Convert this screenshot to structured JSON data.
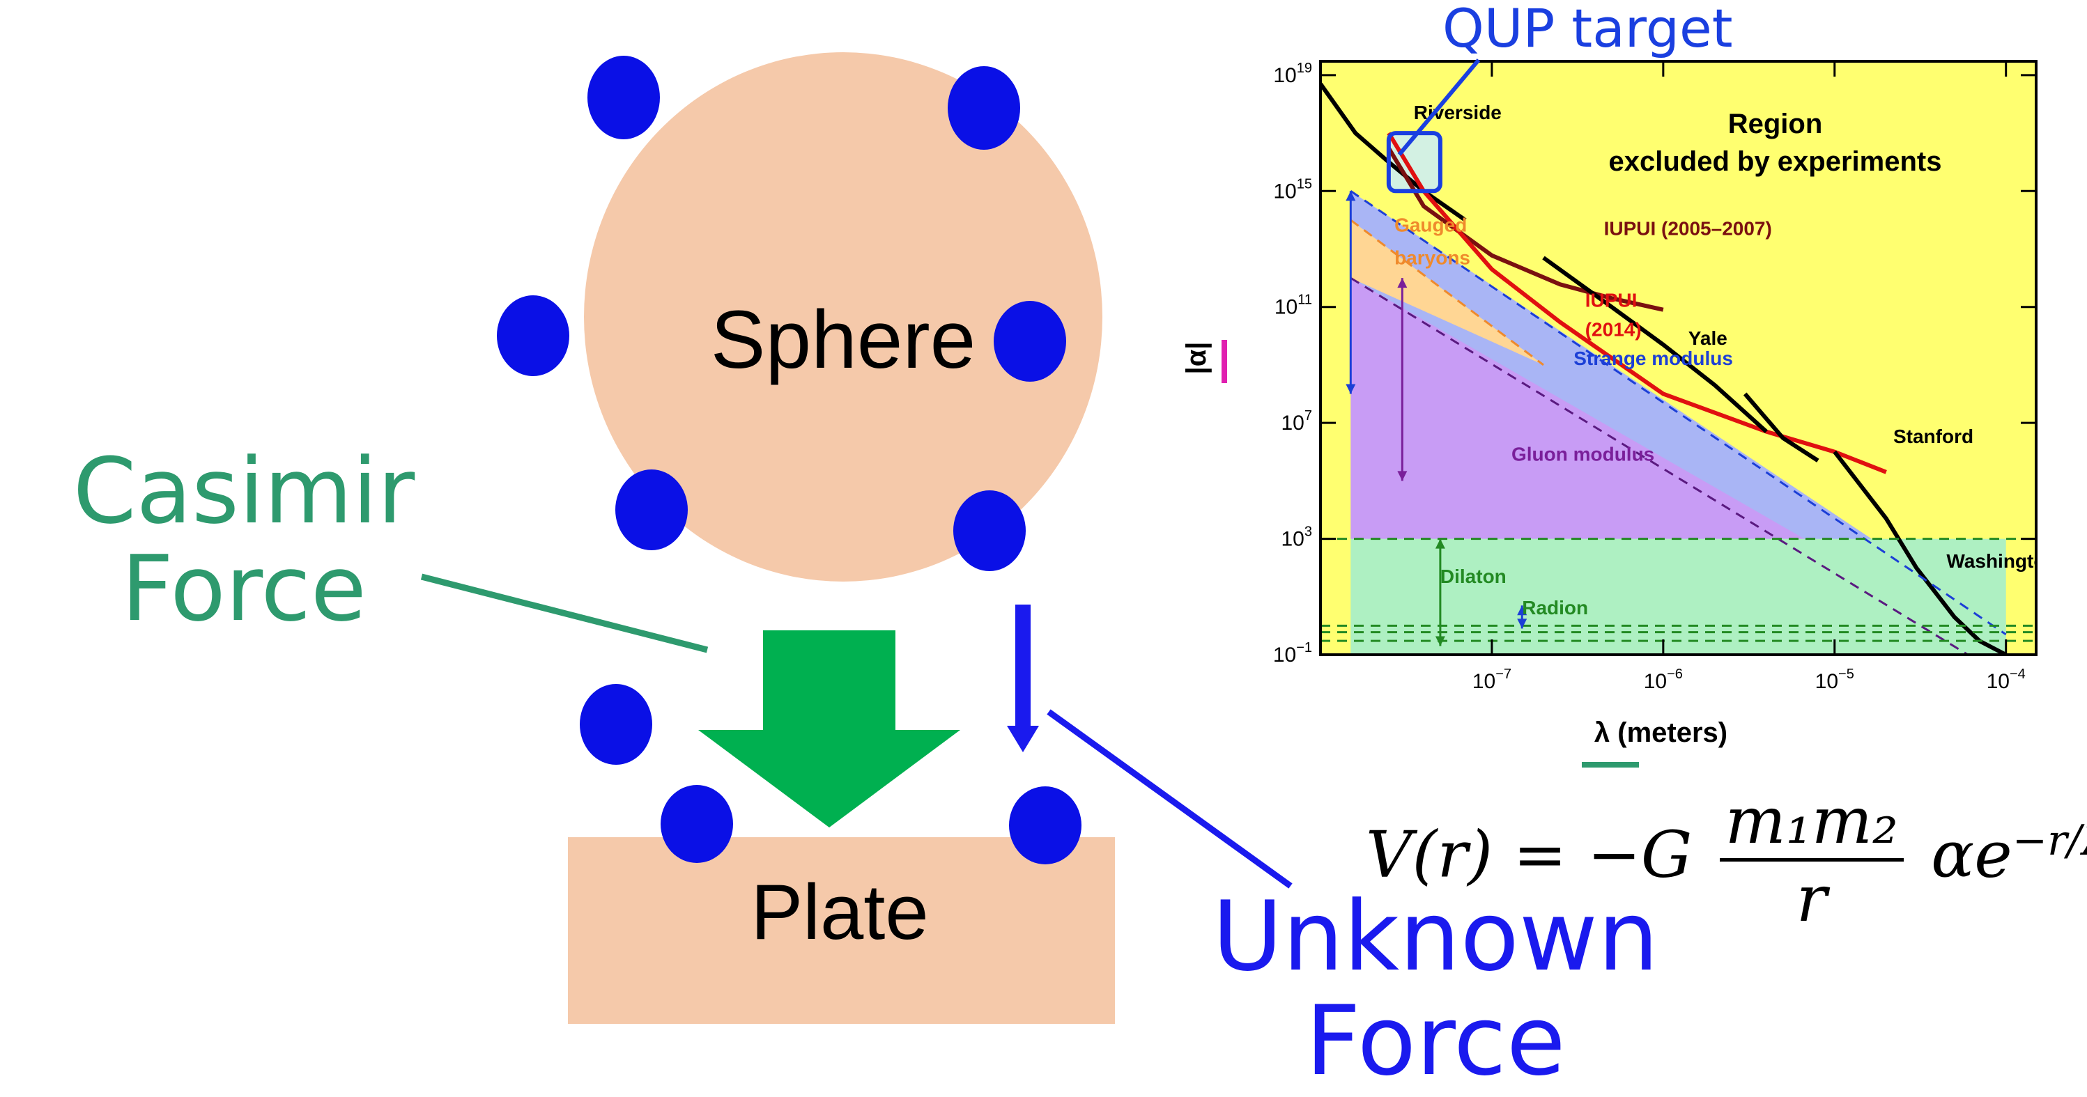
{
  "diagram": {
    "sphere_label": "Sphere",
    "plate_label": "Plate",
    "casimir_label_line1": "Casimir",
    "casimir_label_line2": "Force",
    "unknown_label_line1": "Unknown",
    "unknown_label_line2": "Force",
    "qup_label": "QUP target",
    "formula": {
      "lhs": "V(r) = −G",
      "numerator": "m₁m₂",
      "denominator": "r",
      "factor": "αe",
      "exponent": "−r/λ"
    },
    "colors": {
      "sphere_fill": "#f5c9aa",
      "plate_fill": "#f5c9aa",
      "particle": "#0a10e6",
      "casimir_arrow": "#00b050",
      "casimir_text": "#2e9a6e",
      "unknown_force": "#1a1aee"
    }
  },
  "chart_data": {
    "type": "area",
    "ylabel": "|α|",
    "xlabel": "λ (meters)",
    "x_scale": "log",
    "y_scale": "log",
    "xlim": [
      1e-08,
      0.00015
    ],
    "ylim": [
      0.1,
      3e+19
    ],
    "x_ticks": [
      {
        "value": 1e-07,
        "base": "10",
        "exp": "−7"
      },
      {
        "value": 1e-06,
        "base": "10",
        "exp": "−6"
      },
      {
        "value": 1e-05,
        "base": "10",
        "exp": "−5"
      },
      {
        "value": 0.0001,
        "base": "10",
        "exp": "−4"
      }
    ],
    "y_ticks": [
      {
        "value": 0.1,
        "base": "10",
        "exp": "−1"
      },
      {
        "value": 1000.0,
        "base": "10",
        "exp": "3"
      },
      {
        "value": 10000000.0,
        "base": "10",
        "exp": "7"
      },
      {
        "value": 100000000000.0,
        "base": "10",
        "exp": "11"
      },
      {
        "value": 1000000000000000.0,
        "base": "10",
        "exp": "15"
      },
      {
        "value": 1e+19,
        "base": "10",
        "exp": "19"
      }
    ],
    "background_color": "#ffff70",
    "annotations": [
      {
        "text": "Region",
        "x": 4.5e-06,
        "y": 1e+17,
        "color": "#000000"
      },
      {
        "text": "excluded by experiments",
        "x": 4.5e-06,
        "y": 5000000000000000.0,
        "color": "#000000"
      },
      {
        "text": "Riverside",
        "x": 3.5e-08,
        "y": 3e+17,
        "color": "#000000"
      },
      {
        "text": "IUPUI (2005–2007)",
        "x": 4.5e-07,
        "y": 30000000000000.0,
        "color": "#7a1010"
      },
      {
        "text": "IUPUI",
        "x": 3.5e-07,
        "y": 100000000000.0,
        "color": "#e01010"
      },
      {
        "text": "(2014)",
        "x": 3.5e-07,
        "y": 10000000000.0,
        "color": "#e01010"
      },
      {
        "text": "Yale",
        "x": 1.4e-06,
        "y": 5000000000.0,
        "color": "#000000"
      },
      {
        "text": "Stanford",
        "x": 2.2e-05,
        "y": 2000000.0,
        "color": "#000000"
      },
      {
        "text": "Washington",
        "x": 4.5e-05,
        "y": 100.0,
        "color": "#000000"
      },
      {
        "text": "Gauged",
        "x": 2.7e-08,
        "y": 40000000000000.0,
        "color": "#ef8a2c"
      },
      {
        "text": "baryons",
        "x": 2.7e-08,
        "y": 3000000000000.0,
        "color": "#ef8a2c"
      },
      {
        "text": "Strange modulus",
        "x": 3e-07,
        "y": 1000000000.0,
        "color": "#1c3fd6"
      },
      {
        "text": "Gluon modulus",
        "x": 1.3e-07,
        "y": 500000.0,
        "color": "#7a1f9a"
      },
      {
        "text": "Dilaton",
        "x": 5e-08,
        "y": 30,
        "color": "#238a23"
      },
      {
        "text": "Radion",
        "x": 1.5e-07,
        "y": 2.5,
        "color": "#238a23"
      }
    ],
    "regions": [
      {
        "name": "",
        "color": "#a9b5f5",
        "upper": [
          [
            1.5e-08,
            1000000000000000.0
          ],
          [
            0.0001,
            0.8
          ]
        ],
        "lower": [
          [
            1.5e-08,
            10000000000.0
          ],
          [
            0.0001,
            0.1
          ]
        ]
      },
      {
        "name": "",
        "color": "#c89cf5",
        "upper": [
          [
            1.5e-08,
            1000000000000.0
          ],
          [
            0.0001,
            0.1
          ]
        ],
        "lower": [
          [
            1.5e-08,
            1000.0
          ],
          [
            0.0001,
            0.1
          ]
        ]
      },
      {
        "name": "",
        "color": "#aef0c2",
        "upper": [
          [
            1.5e-08,
            1000.0
          ],
          [
            0.0001,
            1000.0
          ]
        ],
        "lower": [
          [
            1.5e-08,
            0.1
          ],
          [
            0.0001,
            0.1
          ]
        ]
      },
      {
        "name": "",
        "color": "#ffd694",
        "upper": [
          [
            1.5e-08,
            100000000000000.0
          ],
          [
            2e-07,
            1000000000.0
          ]
        ],
        "lower": [
          [
            1.5e-08,
            1000000000000.0
          ],
          [
            2e-07,
            1000000000.0
          ]
        ]
      }
    ],
    "series": [
      {
        "name": "Riverside",
        "color": "#000000",
        "x": [
          1e-08,
          1.6e-08,
          2.5e-08,
          4e-08,
          7e-08
        ],
        "y": [
          5e+18,
          1e+17,
          1e+16,
          1000000000000000.0,
          100000000000000.0
        ]
      },
      {
        "name": "IUPUI (2005–2007)",
        "color": "#7a1010",
        "x": [
          2.5e-08,
          4e-08,
          1e-07,
          2.5e-07,
          5e-07,
          1e-06
        ],
        "y": [
          3e+16,
          300000000000000.0,
          6000000000000.0,
          600000000000.0,
          200000000000.0,
          80000000000.0
        ]
      },
      {
        "name": "IUPUI (2014)",
        "color": "#e01010",
        "x": [
          2.5e-08,
          4e-08,
          1e-07,
          2.5e-07,
          1e-06,
          4e-06,
          1e-05,
          2e-05
        ],
        "y": [
          1e+17,
          1000000000000000.0,
          2000000000000.0,
          30000000000.0,
          100000000.0,
          5000000.0,
          1000000.0,
          200000.0
        ]
      },
      {
        "name": "Yale",
        "color": "#000000",
        "x": [
          2e-07,
          5e-07,
          1e-06,
          2e-06,
          4e-06
        ],
        "y": [
          5000000000000.0,
          100000000000.0,
          5000000000.0,
          200000000.0,
          5000000.0
        ]
      },
      {
        "name": "Stanford",
        "color": "#000000",
        "x": [
          3e-06,
          5e-06,
          8e-06
        ],
        "y": [
          100000000.0,
          3000000.0,
          500000.0
        ]
      },
      {
        "name": "Washington",
        "color": "#000000",
        "x": [
          1e-05,
          2e-05,
          3e-05,
          5e-05,
          7e-05,
          0.0001
        ],
        "y": [
          1000000.0,
          5000.0,
          100.0,
          2.0,
          0.3,
          0.1
        ]
      },
      {
        "name": "",
        "color": "#1c3fd6",
        "dashed": true,
        "x": [
          1.5e-08,
          0.0001
        ],
        "y": [
          1000000000000000.0,
          0.5
        ]
      },
      {
        "name": "",
        "color": "#5a1a80",
        "dashed": true,
        "x": [
          1.5e-08,
          6e-05
        ],
        "y": [
          1000000000000.0,
          0.1
        ]
      },
      {
        "name": "",
        "color": "#ef8a2c",
        "dashed": true,
        "x": [
          1.5e-08,
          2e-07
        ],
        "y": [
          100000000000000.0,
          1000000000.0
        ]
      },
      {
        "name": "",
        "color": "#238a23",
        "dashed": true,
        "x": [
          1e-08,
          0.00015
        ],
        "y": [
          1000.0,
          1000.0
        ]
      },
      {
        "name": "",
        "color": "#238a23",
        "dashed": true,
        "x": [
          1e-08,
          0.00015
        ],
        "y": [
          1.0,
          1.0
        ]
      },
      {
        "name": "",
        "color": "#238a23",
        "dashed": true,
        "x": [
          1e-08,
          0.00015
        ],
        "y": [
          0.6,
          0.6
        ]
      },
      {
        "name": "",
        "color": "#238a23",
        "dashed": true,
        "x": [
          1e-08,
          0.00015
        ],
        "y": [
          0.3,
          0.3
        ]
      }
    ],
    "arrows": [
      {
        "color": "#1c3fd6",
        "x": 1.5e-08,
        "y_from": 1000000000000000.0,
        "y_to": 100000000.0
      },
      {
        "color": "#7a1f9a",
        "x": 3e-08,
        "y_from": 1000000000000.0,
        "y_to": 100000.0
      },
      {
        "color": "#238a23",
        "x": 5e-08,
        "y_from": 1000.0,
        "y_to": 0.2
      },
      {
        "color": "#1c3fd6",
        "x": 1.5e-07,
        "y_from": 5.0,
        "y_to": 0.8
      }
    ],
    "target_box": {
      "x": [
        2.5e-08,
        5e-08
      ],
      "y": [
        1000000000000000.0,
        1e+17
      ],
      "color": "#1a3fe0",
      "fill": "#cbeff7"
    }
  }
}
